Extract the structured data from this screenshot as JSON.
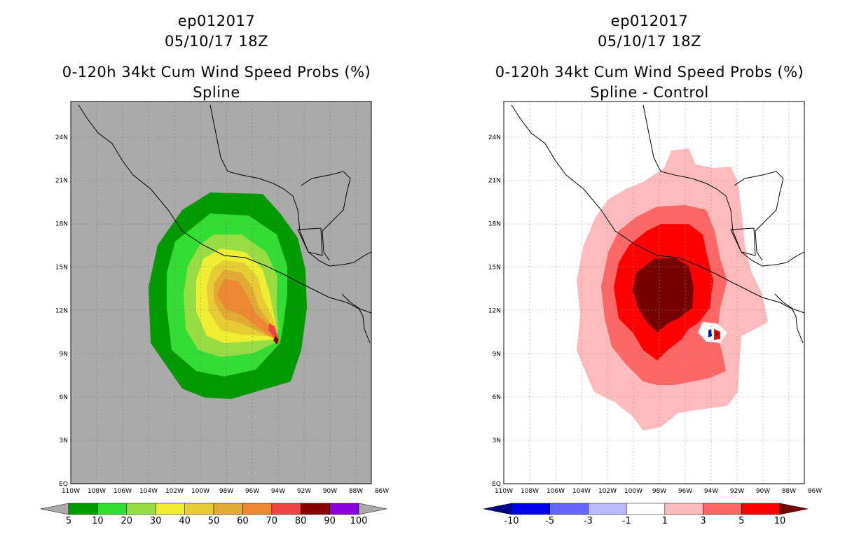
{
  "left": {
    "title1": "ep012017",
    "title2": "05/10/17 18Z",
    "title3": "0-120h 34kt Cum Wind Speed Probs (%)",
    "title4": "Spline",
    "colorbar": {
      "labels": [
        "5",
        "10",
        "20",
        "30",
        "40",
        "50",
        "60",
        "70",
        "80",
        "90",
        "100"
      ],
      "colors": [
        "#009900",
        "#33dd33",
        "#99dd44",
        "#eeee33",
        "#e8cc33",
        "#e0aa33",
        "#ee8833",
        "#ee4444",
        "#880000",
        "#8800dd"
      ],
      "under_color": "#aaaaaa",
      "over_color": "#aaaaaa"
    },
    "background": "#aaaaaa"
  },
  "right": {
    "title1": "ep012017",
    "title2": "05/10/17 18Z",
    "title3": "0-120h 34kt Cum Wind Speed Probs (%)",
    "title4": "Spline - Control",
    "colorbar": {
      "labels": [
        "-10",
        "-5",
        "-3",
        "-1",
        "1",
        "3",
        "5",
        "10"
      ],
      "colors": [
        "#0000ee",
        "#6666ff",
        "#bbbbff",
        "#ffffff",
        "#ffbbbb",
        "#ff6666",
        "#ff0000"
      ],
      "under_color": "#000088",
      "over_color": "#770000"
    },
    "background": "#ffffff"
  },
  "axes": {
    "lon_labels": [
      "110W",
      "108W",
      "106W",
      "104W",
      "102W",
      "100W",
      "98W",
      "96W",
      "94W",
      "92W",
      "90W",
      "88W",
      "86W"
    ],
    "lat_labels": [
      "EQ",
      "3N",
      "6N",
      "9N",
      "12N",
      "15N",
      "18N",
      "21N",
      "24N"
    ]
  }
}
